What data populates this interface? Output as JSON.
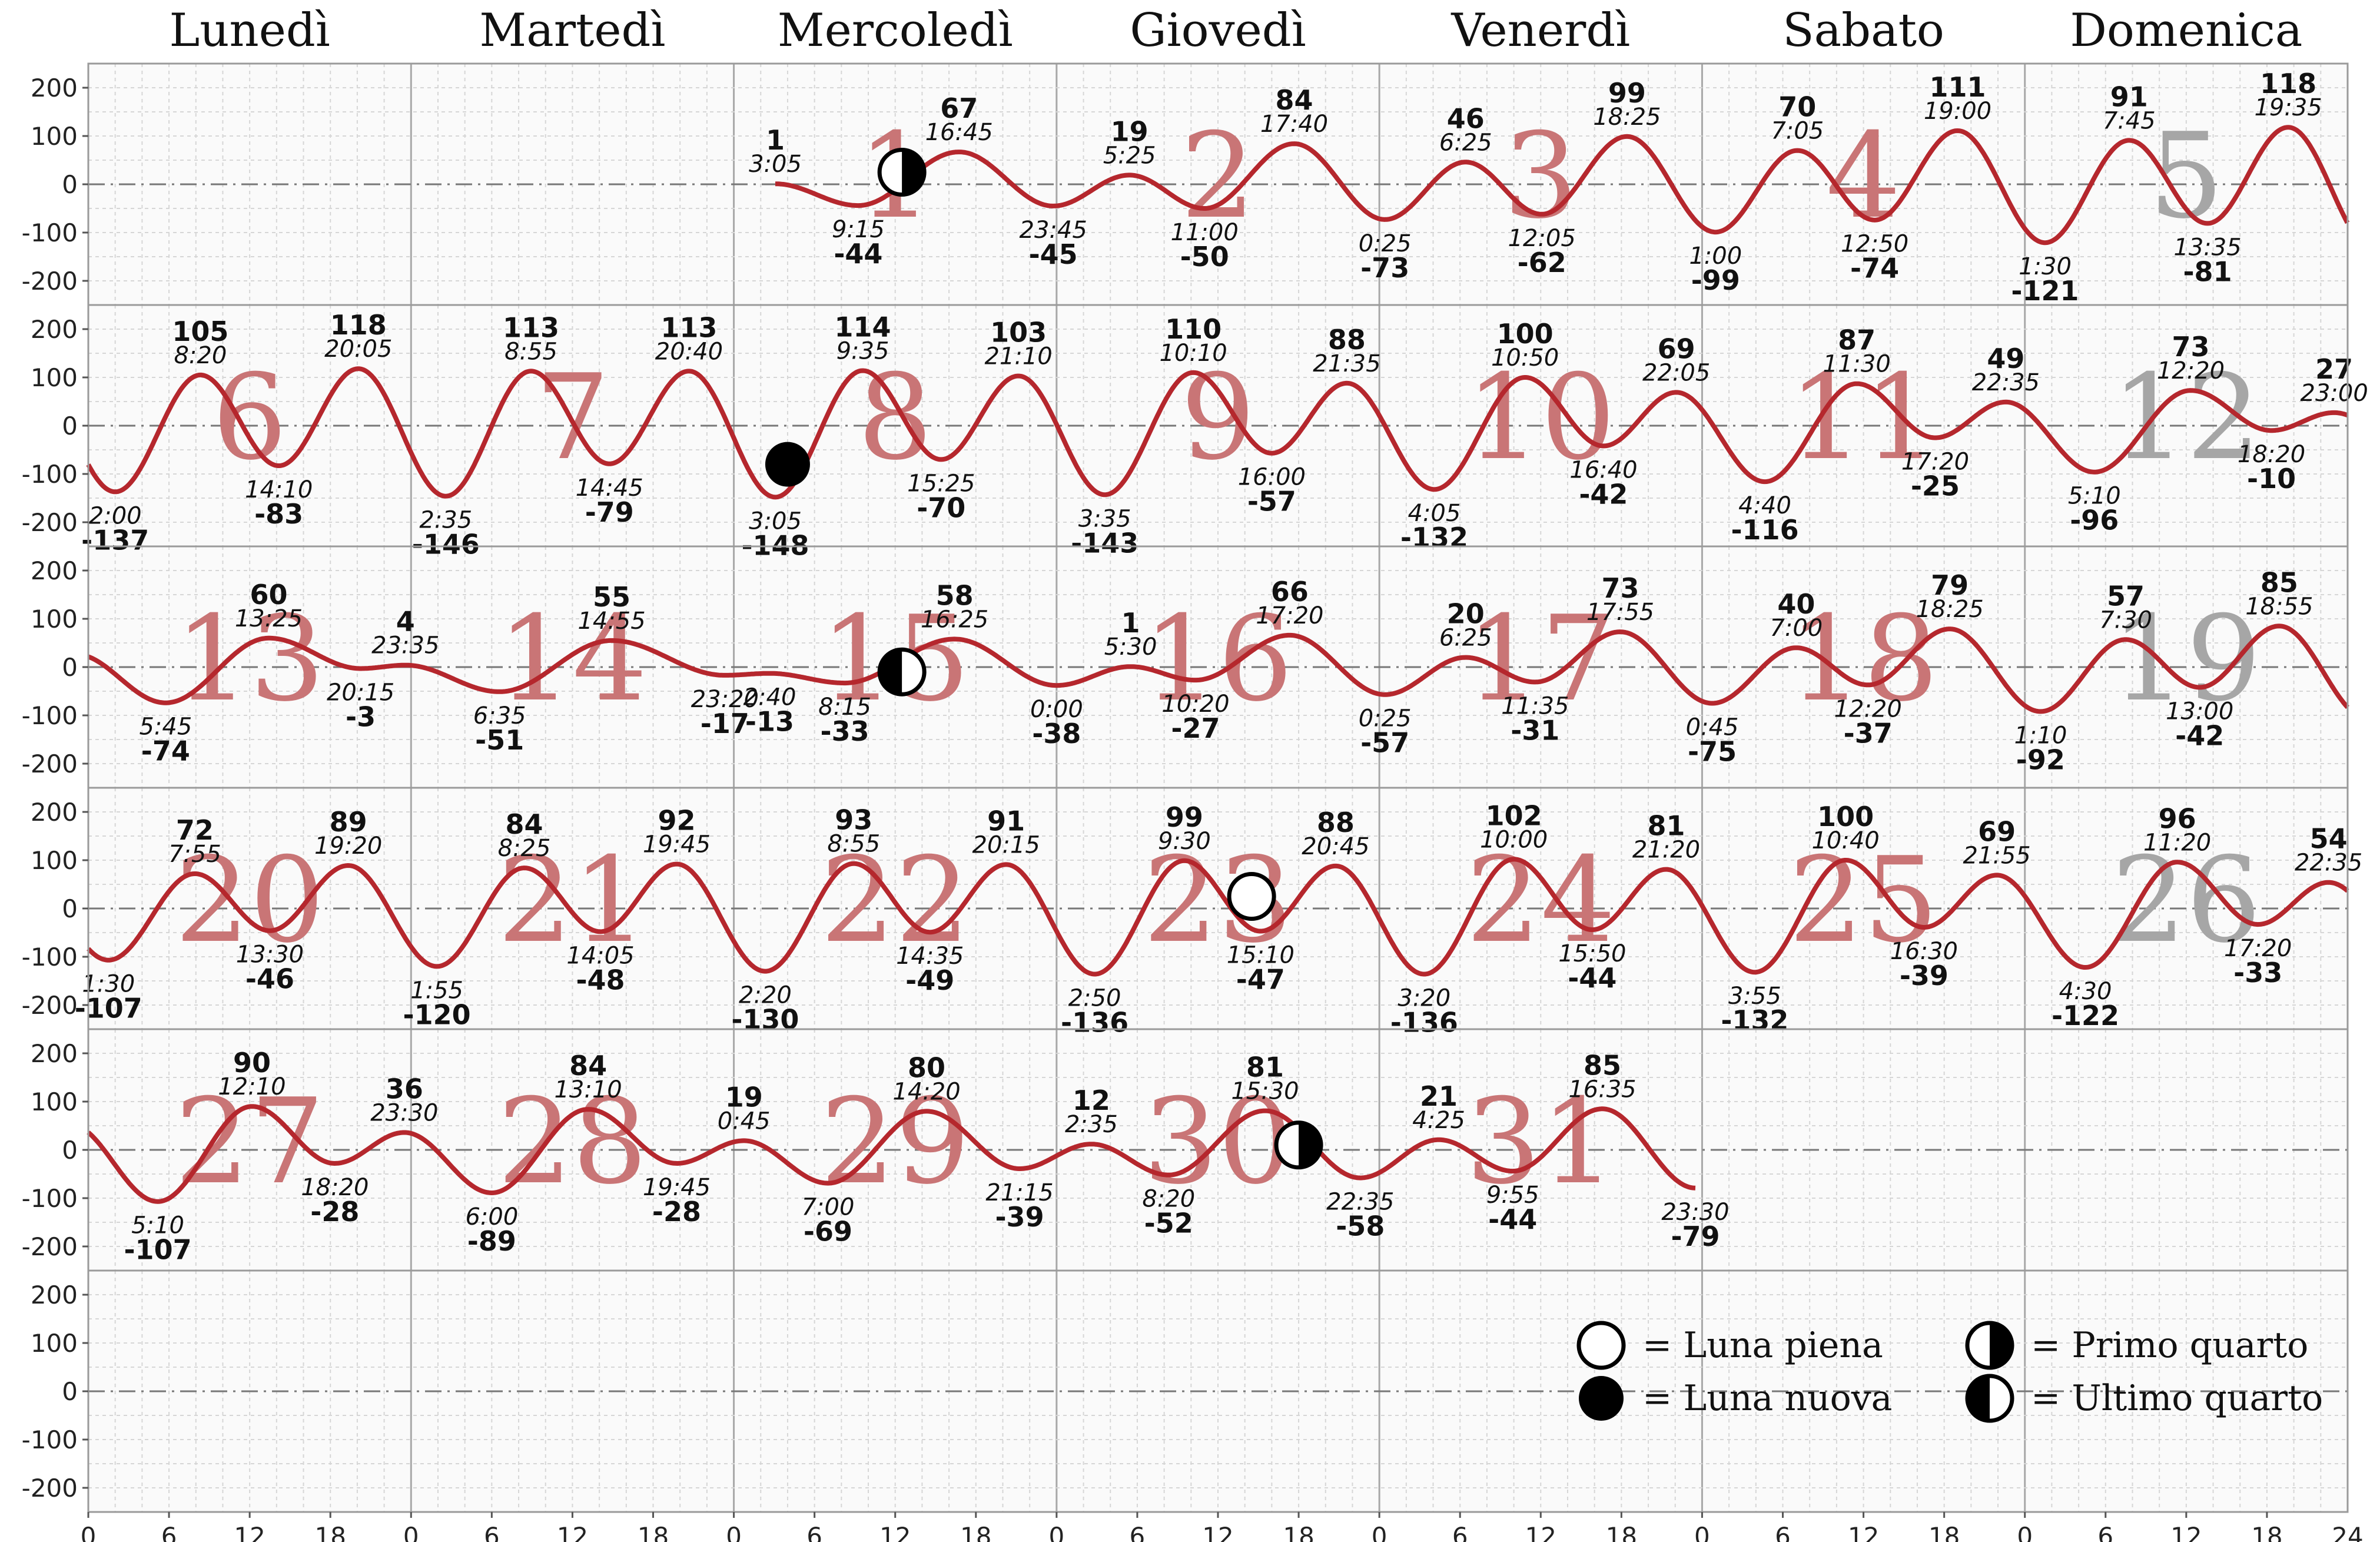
{
  "chart_data": {
    "type": "line",
    "day_headers": [
      "Lunedì",
      "Martedì",
      "Mercoledì",
      "Giovedì",
      "Venerdì",
      "Sabato",
      "Domenica"
    ],
    "x_ticks": [
      "0",
      "6",
      "12",
      "18"
    ],
    "x_tick_last": "24",
    "y_ticks": [
      "200",
      "100",
      "0",
      "-100",
      "-200"
    ],
    "ylim": [
      -250,
      250
    ],
    "start_offset_days": 2,
    "grey_dates": [
      5,
      12,
      19,
      26
    ],
    "colors": {
      "curve": "#b5272d",
      "date": "#c97576",
      "date_sunday": "#a6a6a6",
      "plot_bg": "#fafafa",
      "grid": "#d6d6d6"
    },
    "extrema": [
      {
        "d": 1,
        "t": "3:05",
        "v": 1
      },
      {
        "d": 1,
        "t": "9:15",
        "v": -44
      },
      {
        "d": 1,
        "t": "16:45",
        "v": 67
      },
      {
        "d": 1,
        "t": "23:45",
        "v": -45
      },
      {
        "d": 2,
        "t": "5:25",
        "v": 19
      },
      {
        "d": 2,
        "t": "11:00",
        "v": -50
      },
      {
        "d": 2,
        "t": "17:40",
        "v": 84
      },
      {
        "d": 3,
        "t": "0:25",
        "v": -73
      },
      {
        "d": 3,
        "t": "6:25",
        "v": 46
      },
      {
        "d": 3,
        "t": "12:05",
        "v": -62
      },
      {
        "d": 3,
        "t": "18:25",
        "v": 99
      },
      {
        "d": 4,
        "t": "1:00",
        "v": -99
      },
      {
        "d": 4,
        "t": "7:05",
        "v": 70
      },
      {
        "d": 4,
        "t": "12:50",
        "v": -74
      },
      {
        "d": 4,
        "t": "19:00",
        "v": 111
      },
      {
        "d": 5,
        "t": "1:30",
        "v": -121
      },
      {
        "d": 5,
        "t": "7:45",
        "v": 91
      },
      {
        "d": 5,
        "t": "13:35",
        "v": -81
      },
      {
        "d": 5,
        "t": "19:35",
        "v": 118
      },
      {
        "d": 6,
        "t": "2:00",
        "v": -137
      },
      {
        "d": 6,
        "t": "8:20",
        "v": 105
      },
      {
        "d": 6,
        "t": "14:10",
        "v": -83
      },
      {
        "d": 6,
        "t": "20:05",
        "v": 118
      },
      {
        "d": 7,
        "t": "2:35",
        "v": -146
      },
      {
        "d": 7,
        "t": "8:55",
        "v": 113
      },
      {
        "d": 7,
        "t": "14:45",
        "v": -79
      },
      {
        "d": 7,
        "t": "20:40",
        "v": 113
      },
      {
        "d": 8,
        "t": "3:05",
        "v": -148
      },
      {
        "d": 8,
        "t": "9:35",
        "v": 114
      },
      {
        "d": 8,
        "t": "15:25",
        "v": -70
      },
      {
        "d": 8,
        "t": "21:10",
        "v": 103
      },
      {
        "d": 9,
        "t": "3:35",
        "v": -143
      },
      {
        "d": 9,
        "t": "10:10",
        "v": 110
      },
      {
        "d": 9,
        "t": "16:00",
        "v": -57
      },
      {
        "d": 9,
        "t": "21:35",
        "v": 88
      },
      {
        "d": 10,
        "t": "4:05",
        "v": -132
      },
      {
        "d": 10,
        "t": "10:50",
        "v": 100
      },
      {
        "d": 10,
        "t": "16:40",
        "v": -42
      },
      {
        "d": 10,
        "t": "22:05",
        "v": 69
      },
      {
        "d": 11,
        "t": "4:40",
        "v": -116
      },
      {
        "d": 11,
        "t": "11:30",
        "v": 87
      },
      {
        "d": 11,
        "t": "17:20",
        "v": -25
      },
      {
        "d": 11,
        "t": "22:35",
        "v": 49
      },
      {
        "d": 12,
        "t": "5:10",
        "v": -96
      },
      {
        "d": 12,
        "t": "12:20",
        "v": 73
      },
      {
        "d": 12,
        "t": "18:20",
        "v": -10
      },
      {
        "d": 12,
        "t": "23:00",
        "v": 27
      },
      {
        "d": 13,
        "t": "5:45",
        "v": -74
      },
      {
        "d": 13,
        "t": "13:25",
        "v": 60
      },
      {
        "d": 13,
        "t": "20:15",
        "v": -3
      },
      {
        "d": 13,
        "t": "23:35",
        "v": 4
      },
      {
        "d": 14,
        "t": "6:35",
        "v": -51
      },
      {
        "d": 14,
        "t": "14:55",
        "v": 55
      },
      {
        "d": 14,
        "t": "23:20",
        "v": -17
      },
      {
        "d": 15,
        "t": "2:40",
        "v": -13
      },
      {
        "d": 15,
        "t": "8:15",
        "v": -33
      },
      {
        "d": 15,
        "t": "16:25",
        "v": 58
      },
      {
        "d": 16,
        "t": "0:00",
        "v": -38
      },
      {
        "d": 16,
        "t": "5:30",
        "v": 1
      },
      {
        "d": 16,
        "t": "10:20",
        "v": -27
      },
      {
        "d": 16,
        "t": "17:20",
        "v": 66
      },
      {
        "d": 17,
        "t": "0:25",
        "v": -57
      },
      {
        "d": 17,
        "t": "6:25",
        "v": 20
      },
      {
        "d": 17,
        "t": "11:35",
        "v": -31
      },
      {
        "d": 17,
        "t": "17:55",
        "v": 73
      },
      {
        "d": 18,
        "t": "0:45",
        "v": -75
      },
      {
        "d": 18,
        "t": "7:00",
        "v": 40
      },
      {
        "d": 18,
        "t": "12:20",
        "v": -37
      },
      {
        "d": 18,
        "t": "18:25",
        "v": 79
      },
      {
        "d": 19,
        "t": "1:10",
        "v": -92
      },
      {
        "d": 19,
        "t": "7:30",
        "v": 57
      },
      {
        "d": 19,
        "t": "13:00",
        "v": -42
      },
      {
        "d": 19,
        "t": "18:55",
        "v": 85
      },
      {
        "d": 20,
        "t": "1:30",
        "v": -107
      },
      {
        "d": 20,
        "t": "7:55",
        "v": 72
      },
      {
        "d": 20,
        "t": "13:30",
        "v": -46
      },
      {
        "d": 20,
        "t": "19:20",
        "v": 89
      },
      {
        "d": 21,
        "t": "1:55",
        "v": -120
      },
      {
        "d": 21,
        "t": "8:25",
        "v": 84
      },
      {
        "d": 21,
        "t": "14:05",
        "v": -48
      },
      {
        "d": 21,
        "t": "19:45",
        "v": 92
      },
      {
        "d": 22,
        "t": "2:20",
        "v": -130
      },
      {
        "d": 22,
        "t": "8:55",
        "v": 93
      },
      {
        "d": 22,
        "t": "14:35",
        "v": -49
      },
      {
        "d": 22,
        "t": "20:15",
        "v": 91
      },
      {
        "d": 23,
        "t": "2:50",
        "v": -136
      },
      {
        "d": 23,
        "t": "9:30",
        "v": 99
      },
      {
        "d": 23,
        "t": "15:10",
        "v": -47
      },
      {
        "d": 23,
        "t": "20:45",
        "v": 88
      },
      {
        "d": 24,
        "t": "3:20",
        "v": -136
      },
      {
        "d": 24,
        "t": "10:00",
        "v": 102
      },
      {
        "d": 24,
        "t": "15:50",
        "v": -44
      },
      {
        "d": 24,
        "t": "21:20",
        "v": 81
      },
      {
        "d": 25,
        "t": "3:55",
        "v": -132
      },
      {
        "d": 25,
        "t": "10:40",
        "v": 100
      },
      {
        "d": 25,
        "t": "16:30",
        "v": -39
      },
      {
        "d": 25,
        "t": "21:55",
        "v": 69
      },
      {
        "d": 26,
        "t": "4:30",
        "v": -122
      },
      {
        "d": 26,
        "t": "11:20",
        "v": 96
      },
      {
        "d": 26,
        "t": "17:20",
        "v": -33
      },
      {
        "d": 26,
        "t": "22:35",
        "v": 54
      },
      {
        "d": 27,
        "t": "5:10",
        "v": -107
      },
      {
        "d": 27,
        "t": "12:10",
        "v": 90
      },
      {
        "d": 27,
        "t": "18:20",
        "v": -28
      },
      {
        "d": 27,
        "t": "23:30",
        "v": 36
      },
      {
        "d": 28,
        "t": "6:00",
        "v": -89
      },
      {
        "d": 28,
        "t": "13:10",
        "v": 84
      },
      {
        "d": 28,
        "t": "19:45",
        "v": -28
      },
      {
        "d": 29,
        "t": "0:45",
        "v": 19
      },
      {
        "d": 29,
        "t": "7:00",
        "v": -69
      },
      {
        "d": 29,
        "t": "14:20",
        "v": 80
      },
      {
        "d": 29,
        "t": "21:15",
        "v": -39
      },
      {
        "d": 30,
        "t": "2:35",
        "v": 12
      },
      {
        "d": 30,
        "t": "8:20",
        "v": -52
      },
      {
        "d": 30,
        "t": "15:30",
        "v": 81
      },
      {
        "d": 30,
        "t": "22:35",
        "v": -58
      },
      {
        "d": 31,
        "t": "4:25",
        "v": 21
      },
      {
        "d": 31,
        "t": "9:55",
        "v": -44
      },
      {
        "d": 31,
        "t": "16:35",
        "v": 85
      },
      {
        "d": 31,
        "t": "23:30",
        "v": -79
      }
    ],
    "moon_phases": [
      {
        "d": 1,
        "t": "12:30",
        "v": 25,
        "phase": "first"
      },
      {
        "d": 8,
        "t": "4:00",
        "v": -80,
        "phase": "new"
      },
      {
        "d": 15,
        "t": "12:30",
        "v": -10,
        "phase": "last"
      },
      {
        "d": 23,
        "t": "14:30",
        "v": 25,
        "phase": "full"
      },
      {
        "d": 30,
        "t": "18:00",
        "v": 10,
        "phase": "first"
      }
    ],
    "legend": [
      {
        "phase": "full",
        "label": "= Luna piena"
      },
      {
        "phase": "first",
        "label": "= Primo quarto"
      },
      {
        "phase": "new",
        "label": "= Luna nuova"
      },
      {
        "phase": "last",
        "label": "= Ultimo quarto"
      }
    ]
  }
}
